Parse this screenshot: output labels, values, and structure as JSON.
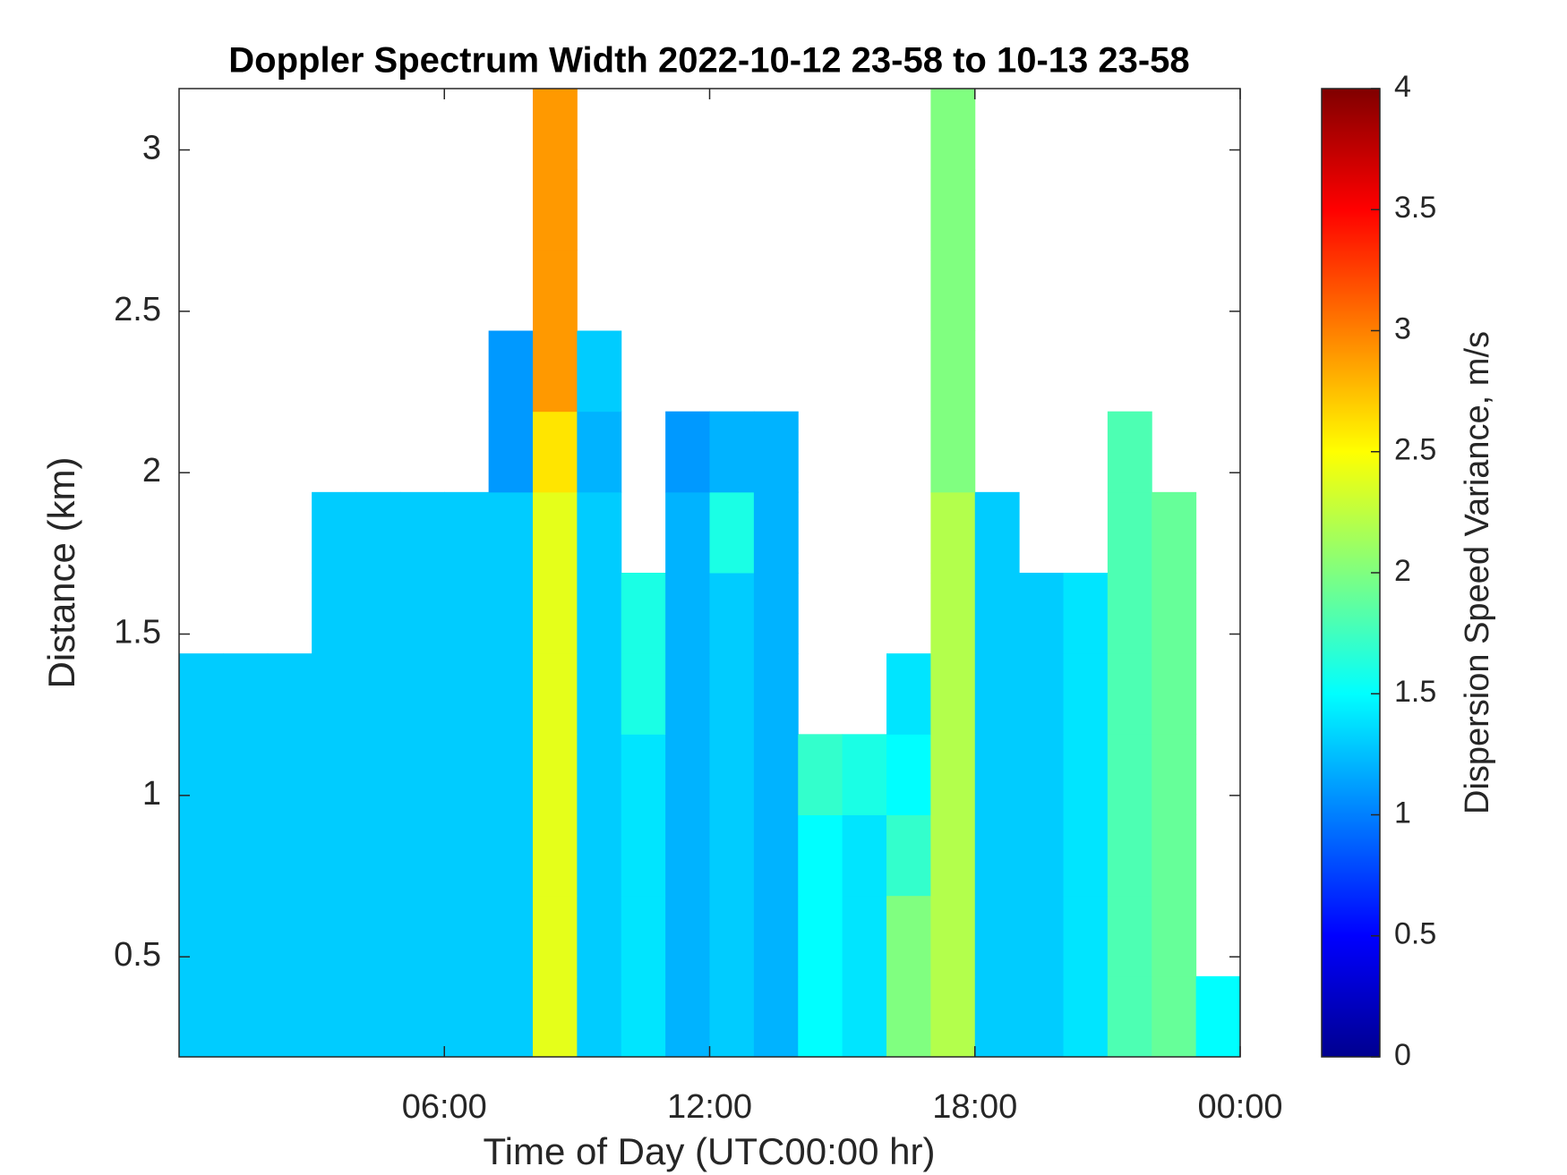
{
  "chart_data": {
    "type": "heatmap",
    "title": "Doppler Spectrum Width 2022-10-12 23-58 to 10-13 23-58",
    "xlabel": "Time of Day (UTC00:00 hr)",
    "ylabel": "Distance (km)",
    "colorbar_label": "Dispersion Speed Variance, m/s",
    "colormap": "jet",
    "x_edges": [
      0,
      1,
      2,
      3,
      4,
      5,
      6,
      7,
      8,
      9,
      10,
      11,
      12,
      13,
      14,
      15,
      16,
      17,
      18,
      19,
      20,
      21,
      22,
      23,
      24
    ],
    "y_edges": [
      0.19,
      0.44,
      0.69,
      0.94,
      1.19,
      1.44,
      1.69,
      1.94,
      2.19,
      2.44,
      2.69,
      2.94,
      3.19
    ],
    "z": [
      [
        1.3,
        1.3,
        1.3,
        1.3,
        1.3,
        1.3,
        1.3,
        1.3,
        2.4,
        1.3,
        1.4,
        1.2,
        1.3,
        1.2,
        1.5,
        1.4,
        2.0,
        2.2,
        1.3,
        1.3,
        1.4,
        1.8,
        1.9,
        1.5
      ],
      [
        1.3,
        1.3,
        1.3,
        1.3,
        1.3,
        1.3,
        1.3,
        1.3,
        2.4,
        1.3,
        1.4,
        1.2,
        1.3,
        1.2,
        1.5,
        1.4,
        2.0,
        2.2,
        1.3,
        1.3,
        1.4,
        1.8,
        1.9,
        null
      ],
      [
        1.3,
        1.3,
        1.3,
        1.3,
        1.3,
        1.3,
        1.3,
        1.3,
        2.4,
        1.3,
        1.4,
        1.2,
        1.3,
        1.2,
        1.5,
        1.4,
        1.7,
        2.2,
        1.3,
        1.3,
        1.4,
        1.8,
        1.9,
        null
      ],
      [
        1.3,
        1.3,
        1.3,
        1.3,
        1.3,
        1.3,
        1.3,
        1.3,
        2.4,
        1.3,
        1.4,
        1.2,
        1.3,
        1.2,
        1.7,
        1.6,
        1.5,
        2.2,
        1.3,
        1.3,
        1.4,
        1.8,
        1.9,
        null
      ],
      [
        1.3,
        1.3,
        1.3,
        1.3,
        1.3,
        1.3,
        1.3,
        1.3,
        2.4,
        1.3,
        1.6,
        1.2,
        1.3,
        1.2,
        null,
        null,
        1.4,
        2.2,
        1.3,
        1.3,
        1.4,
        1.8,
        1.9,
        null
      ],
      [
        null,
        null,
        null,
        1.3,
        1.3,
        1.3,
        1.3,
        1.3,
        2.4,
        1.3,
        1.6,
        1.2,
        1.3,
        1.2,
        null,
        null,
        null,
        2.2,
        1.3,
        1.3,
        1.4,
        1.8,
        1.9,
        null
      ],
      [
        null,
        null,
        null,
        1.3,
        1.3,
        1.3,
        1.3,
        1.3,
        2.4,
        1.3,
        null,
        1.2,
        1.6,
        1.2,
        null,
        null,
        null,
        2.2,
        1.3,
        null,
        null,
        1.8,
        1.9,
        null
      ],
      [
        null,
        null,
        null,
        null,
        null,
        null,
        null,
        1.1,
        2.6,
        1.2,
        null,
        1.1,
        1.2,
        1.2,
        null,
        null,
        null,
        2.0,
        null,
        null,
        null,
        1.8,
        null,
        null
      ],
      [
        null,
        null,
        null,
        null,
        null,
        null,
        null,
        1.1,
        2.9,
        1.3,
        null,
        null,
        null,
        null,
        null,
        null,
        null,
        2.0,
        null,
        null,
        null,
        null,
        null,
        null
      ],
      [
        null,
        null,
        null,
        null,
        null,
        null,
        null,
        null,
        2.9,
        null,
        null,
        null,
        null,
        null,
        null,
        null,
        null,
        2.0,
        null,
        null,
        null,
        null,
        null,
        null
      ],
      [
        null,
        null,
        null,
        null,
        null,
        null,
        null,
        null,
        2.9,
        null,
        null,
        null,
        null,
        null,
        null,
        null,
        null,
        2.0,
        null,
        null,
        null,
        null,
        null,
        null
      ],
      [
        null,
        null,
        null,
        null,
        null,
        null,
        null,
        null,
        2.9,
        null,
        null,
        null,
        null,
        null,
        null,
        null,
        null,
        2.0,
        null,
        null,
        null,
        null,
        null,
        null
      ]
    ],
    "xlim": [
      0,
      24
    ],
    "xticks": [
      {
        "value": 6,
        "label": "06:00"
      },
      {
        "value": 12,
        "label": "12:00"
      },
      {
        "value": 18,
        "label": "18:00"
      },
      {
        "value": 24,
        "label": "00:00"
      }
    ],
    "ylim": [
      0.19,
      3.19
    ],
    "yticks": [
      0.5,
      1,
      1.5,
      2,
      2.5,
      3
    ],
    "clim": [
      0,
      4
    ],
    "cticks": [
      0,
      0.5,
      1,
      1.5,
      2,
      2.5,
      3,
      3.5,
      4
    ]
  }
}
